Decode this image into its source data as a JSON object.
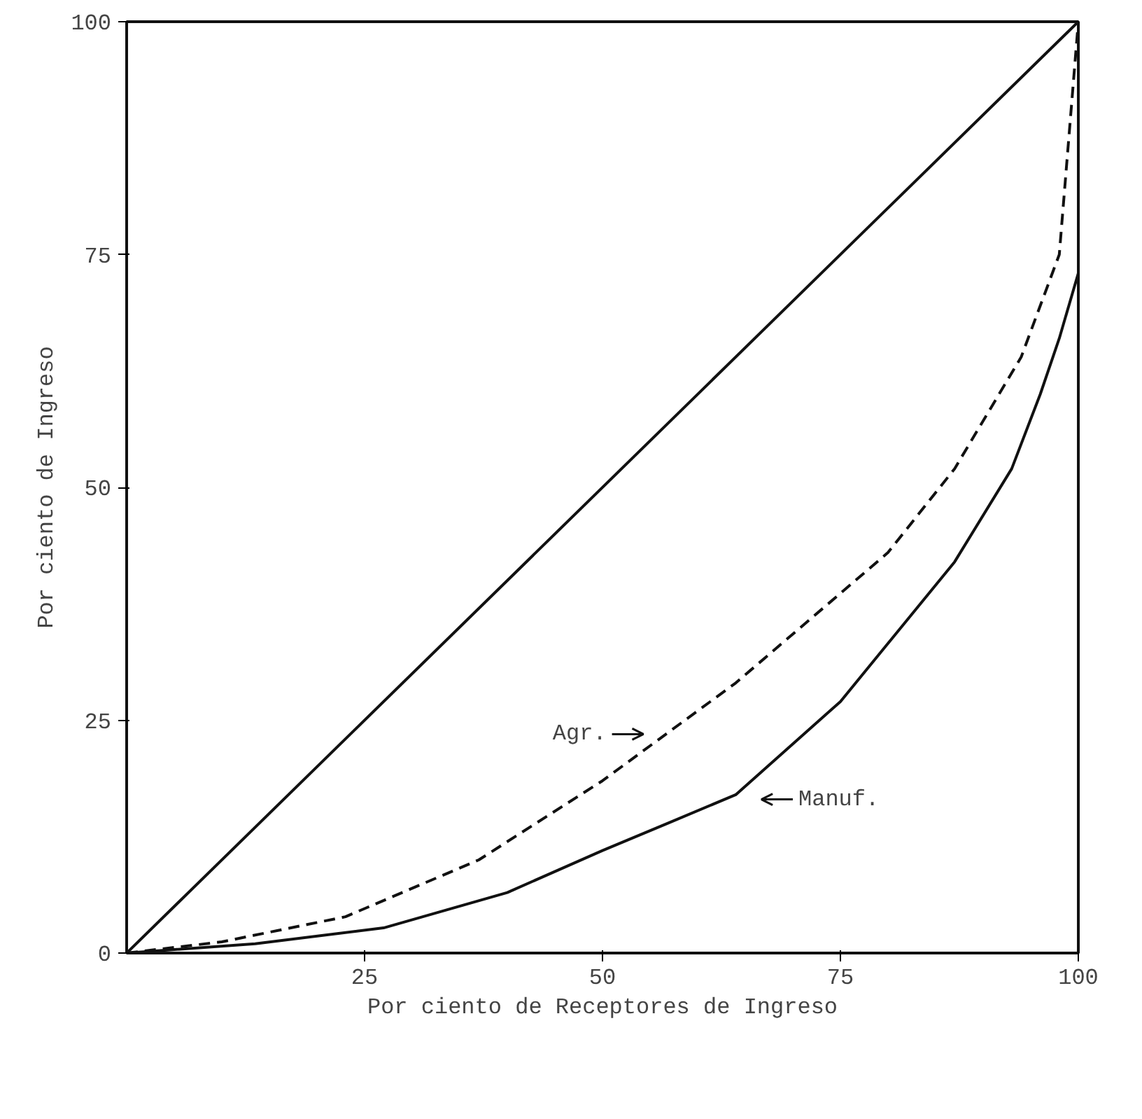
{
  "chart_data": {
    "type": "line",
    "xlabel": "Por ciento de Receptores de Ingreso",
    "ylabel": "Por ciento de Ingreso",
    "xlim": [
      0,
      100
    ],
    "ylim": [
      0,
      100
    ],
    "xticks": [
      25,
      50,
      75,
      100
    ],
    "yticks": [
      0,
      25,
      50,
      75,
      100
    ],
    "grid": false,
    "series": [
      {
        "color": "#111111",
        "line_style": "solid",
        "x": [
          0,
          100
        ],
        "values": [
          0,
          100
        ]
      },
      {
        "color": "#111111",
        "line_style": "dashed",
        "x": [
          0,
          10,
          23,
          37,
          50,
          56,
          64,
          72,
          80,
          87,
          94,
          98,
          100
        ],
        "values": [
          0,
          1.2,
          3.9,
          10,
          18.5,
          23,
          29,
          36,
          43,
          52,
          64,
          75,
          100
        ]
      },
      {
        "color": "#111111",
        "line_style": "solid",
        "x": [
          0,
          13.5,
          27,
          40,
          50,
          57,
          64,
          75,
          87,
          93,
          96,
          98,
          100
        ],
        "values": [
          0,
          1,
          2.7,
          6.5,
          11,
          14,
          17,
          27,
          42,
          52,
          60,
          66,
          73
        ]
      }
    ],
    "annotations": [
      {
        "text": "Agr.",
        "x": 57,
        "y": 23.5
      },
      {
        "text": "Manuf.",
        "x": 64,
        "y": 16.5
      }
    ]
  }
}
